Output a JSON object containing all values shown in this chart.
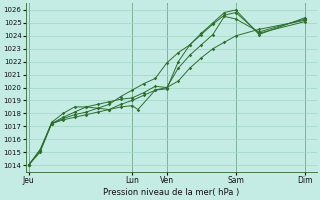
{
  "background_color": "#c5ece4",
  "grid_color": "#a0d4c4",
  "line_color": "#2d6e2d",
  "xlabel": "Pression niveau de la mer( hPa )",
  "ylim": [
    1013.5,
    1026.5
  ],
  "yticks": [
    1014,
    1015,
    1016,
    1017,
    1018,
    1019,
    1020,
    1021,
    1022,
    1023,
    1024,
    1025,
    1026
  ],
  "xtick_labels": [
    "Jeu",
    "Lun",
    "Ven",
    "Sam",
    "Dim"
  ],
  "xtick_positions": [
    0,
    36,
    48,
    72,
    96
  ],
  "xlim": [
    -1,
    100
  ],
  "series": [
    {
      "x": [
        0,
        4,
        8,
        12,
        16,
        20,
        24,
        28,
        32,
        36,
        40,
        44,
        48,
        52,
        56,
        60,
        64,
        68,
        72,
        80,
        96
      ],
      "y": [
        1014.0,
        1015.0,
        1017.2,
        1017.5,
        1017.7,
        1017.9,
        1018.1,
        1018.3,
        1018.7,
        1019.0,
        1019.4,
        1019.8,
        1020.0,
        1020.5,
        1021.5,
        1022.3,
        1023.0,
        1023.5,
        1024.0,
        1024.5,
        1025.2
      ]
    },
    {
      "x": [
        0,
        4,
        8,
        12,
        16,
        20,
        24,
        28,
        32,
        36,
        40,
        44,
        48,
        52,
        56,
        60,
        64,
        68,
        72,
        80,
        96
      ],
      "y": [
        1014.0,
        1015.1,
        1017.2,
        1017.7,
        1018.1,
        1018.5,
        1018.7,
        1018.9,
        1019.1,
        1019.2,
        1019.6,
        1020.1,
        1020.0,
        1021.5,
        1022.5,
        1023.3,
        1024.1,
        1025.5,
        1025.3,
        1024.3,
        1025.3
      ]
    },
    {
      "x": [
        0,
        4,
        8,
        12,
        16,
        20,
        24,
        28,
        32,
        36,
        38,
        44,
        48,
        52,
        56,
        60,
        64,
        68,
        72,
        80,
        96
      ],
      "y": [
        1014.0,
        1015.1,
        1017.3,
        1018.0,
        1018.5,
        1018.5,
        1018.4,
        1018.3,
        1018.5,
        1018.6,
        1018.3,
        1019.8,
        1019.9,
        1022.0,
        1023.3,
        1024.1,
        1024.9,
        1025.6,
        1025.8,
        1024.2,
        1025.1
      ]
    },
    {
      "x": [
        0,
        4,
        8,
        12,
        16,
        20,
        24,
        28,
        32,
        36,
        40,
        44,
        48,
        52,
        56,
        60,
        64,
        68,
        72,
        80,
        96
      ],
      "y": [
        1014.0,
        1015.2,
        1017.2,
        1017.6,
        1017.9,
        1018.1,
        1018.4,
        1018.7,
        1019.3,
        1019.8,
        1020.3,
        1020.7,
        1021.9,
        1022.7,
        1023.3,
        1024.2,
        1025.0,
        1025.8,
        1026.0,
        1024.1,
        1025.4
      ]
    }
  ]
}
